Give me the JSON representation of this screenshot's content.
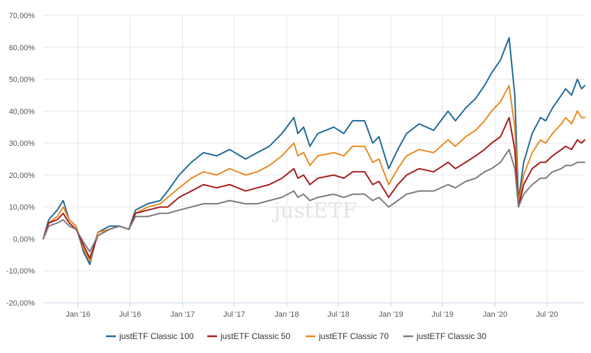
{
  "chart_data": {
    "type": "line",
    "title": "",
    "xlabel": "",
    "ylabel": "",
    "watermark": "justETF",
    "grid": true,
    "legend_position": "bottom",
    "ylim": [
      -20,
      70
    ],
    "y_ticks": [
      "70,00%",
      "60,00%",
      "50,00%",
      "40,00%",
      "30,00%",
      "20,00%",
      "10,00%",
      "0,00%",
      "-10,00%",
      "-20,00%"
    ],
    "y_tick_values": [
      70,
      60,
      50,
      40,
      30,
      20,
      10,
      0,
      -10,
      -20
    ],
    "xlim": [
      "2015-09-01",
      "2020-11-10"
    ],
    "x_ticks": [
      "Jan '16",
      "Jul '16",
      "Jan '17",
      "Jul '17",
      "Jan '18",
      "Jul '18",
      "Jan '19",
      "Jul '19",
      "Jan '20",
      "Jul '20"
    ],
    "x_tick_dates": [
      "2016-01-01",
      "2016-07-01",
      "2017-01-01",
      "2017-07-01",
      "2018-01-01",
      "2018-07-01",
      "2019-01-01",
      "2019-07-01",
      "2020-01-01",
      "2020-07-01"
    ],
    "x": [
      "2015-09-01",
      "2015-09-20",
      "2015-10-20",
      "2015-11-10",
      "2015-12-01",
      "2015-12-25",
      "2016-01-20",
      "2016-02-11",
      "2016-03-10",
      "2016-04-20",
      "2016-05-25",
      "2016-06-27",
      "2016-07-20",
      "2016-09-01",
      "2016-10-15",
      "2016-11-10",
      "2016-12-20",
      "2017-02-01",
      "2017-03-15",
      "2017-05-01",
      "2017-06-15",
      "2017-08-10",
      "2017-09-20",
      "2017-11-01",
      "2017-12-15",
      "2018-01-26",
      "2018-02-09",
      "2018-03-01",
      "2018-03-23",
      "2018-04-20",
      "2018-06-15",
      "2018-07-20",
      "2018-08-20",
      "2018-10-01",
      "2018-10-29",
      "2018-11-20",
      "2018-12-24",
      "2019-01-25",
      "2019-02-25",
      "2019-04-10",
      "2019-05-31",
      "2019-07-20",
      "2019-08-15",
      "2019-09-20",
      "2019-10-25",
      "2019-11-25",
      "2019-12-20",
      "2020-01-20",
      "2020-02-19",
      "2020-03-10",
      "2020-03-23",
      "2020-04-10",
      "2020-05-10",
      "2020-06-08",
      "2020-06-26",
      "2020-07-20",
      "2020-08-20",
      "2020-09-04",
      "2020-09-25",
      "2020-10-15",
      "2020-10-30",
      "2020-11-10"
    ],
    "series": [
      {
        "name": "justETF Classic 100",
        "color": "#1f6a96",
        "values": [
          0,
          6,
          9,
          12,
          6,
          4,
          -4,
          -8,
          2,
          4,
          4,
          3,
          9,
          11,
          12,
          15,
          20,
          24,
          27,
          26,
          28,
          25,
          27,
          29,
          33,
          38,
          33,
          35,
          29,
          33,
          35,
          33,
          37,
          37,
          30,
          32,
          22,
          28,
          33,
          36,
          34,
          40,
          37,
          41,
          44,
          48,
          52,
          56,
          63,
          45,
          12,
          24,
          33,
          38,
          37,
          41,
          45,
          47,
          45,
          50,
          47,
          48
        ]
      },
      {
        "name": "justETF Classic 50",
        "color": "#a51b1b",
        "values": [
          0,
          5,
          6,
          8,
          5,
          3,
          -2,
          -6,
          1,
          3,
          4,
          3,
          8,
          9,
          10,
          10,
          13,
          15,
          17,
          16,
          17,
          15,
          16,
          17,
          19,
          22,
          19,
          20,
          17,
          19,
          20,
          19,
          21,
          21,
          17,
          18,
          13,
          17,
          20,
          22,
          21,
          24,
          22,
          24,
          26,
          28,
          30,
          32,
          38,
          28,
          10,
          17,
          22,
          24,
          24,
          26,
          28,
          29,
          28,
          31,
          30,
          31
        ]
      },
      {
        "name": "justETF Classic 70",
        "color": "#e8891f",
        "values": [
          0,
          5,
          7,
          10,
          6,
          4,
          -3,
          -7,
          2,
          3,
          4,
          3,
          8,
          10,
          11,
          13,
          16,
          19,
          21,
          20,
          22,
          20,
          21,
          23,
          26,
          30,
          26,
          27,
          23,
          26,
          27,
          26,
          29,
          29,
          24,
          25,
          17,
          22,
          26,
          28,
          27,
          31,
          29,
          32,
          34,
          37,
          40,
          43,
          48,
          35,
          11,
          20,
          27,
          31,
          30,
          33,
          36,
          38,
          36,
          40,
          38,
          38
        ]
      },
      {
        "name": "justETF Classic 30",
        "color": "#7a7a7a",
        "values": [
          0,
          4,
          5,
          6,
          4,
          3,
          -1,
          -4,
          1,
          3,
          4,
          3,
          7,
          7,
          8,
          8,
          9,
          10,
          11,
          11,
          12,
          11,
          11,
          12,
          13,
          15,
          13,
          14,
          12,
          13,
          14,
          13,
          14,
          14,
          12,
          13,
          10,
          12,
          14,
          15,
          15,
          17,
          16,
          18,
          19,
          21,
          22,
          24,
          28,
          22,
          10,
          14,
          17,
          19,
          19,
          21,
          22,
          23,
          23,
          24,
          24,
          24
        ]
      }
    ]
  }
}
